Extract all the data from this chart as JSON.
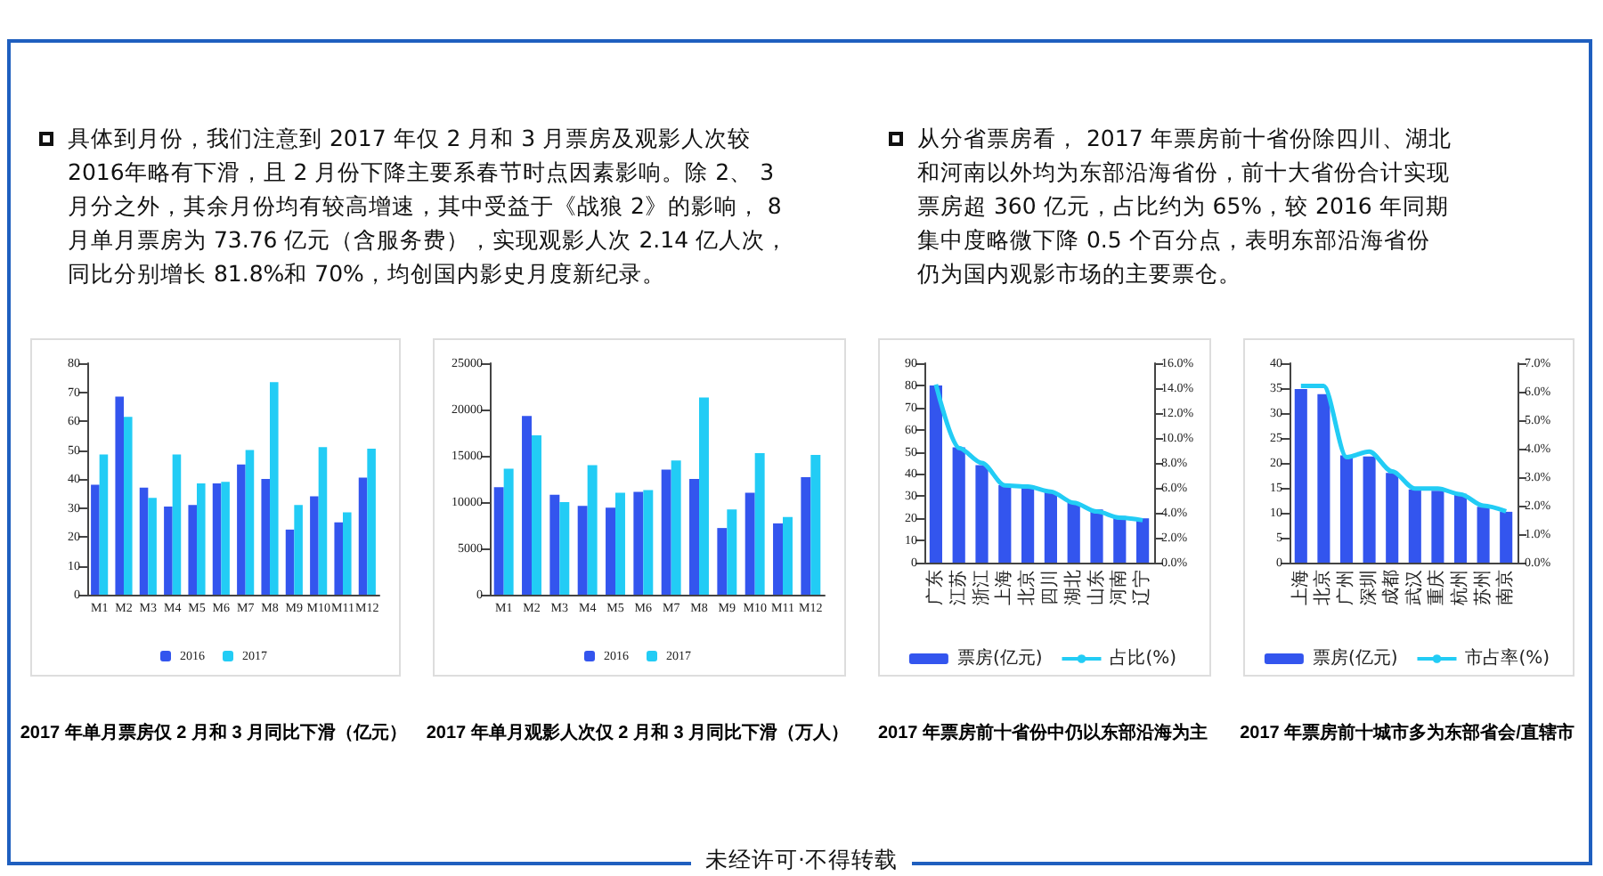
{
  "chart_data": [
    {
      "type": "other",
      "annotations": [
        "具体到月份，我们注意到 2017 年仅 2 月和 3 月票房及观影人次较 2016年略有下滑，且 2 月份下降主要系春节时点因素影响。除 2、 3 月分之外，其余月份均有较高增速，其中受益于《战狼 2》的影响， 8 月单月票房为 73.76 亿元（含服务费），实现观影人次 2.14 亿人次，同比分别增长 81.8%和 70%，均创国内影史月度新纪录。",
        "从分省票房看， 2017 年票房前十省份除四川、湖北和河南以外均为东部沿海省份，前十大省份合计实现票房超 360 亿元，占比约为 65%，较 2016 年同期集中度略微下降 0.5 个百分点，表明东部沿海省份仍为国内观影市场的主要票仓。",
        "未经许可·不得转载"
      ]
    },
    {
      "type": "bar",
      "title": "2017 年单月票房仅 2 月和 3 月同比下滑（亿元）",
      "categories": [
        "M1",
        "M2",
        "M3",
        "M4",
        "M5",
        "M6",
        "M7",
        "M8",
        "M9",
        "M10",
        "M11",
        "M12"
      ],
      "ylim": [
        0,
        80
      ],
      "yticks": [
        0,
        10,
        20,
        30,
        40,
        50,
        60,
        70,
        80
      ],
      "legend": "bottom",
      "series": [
        {
          "name": "2016",
          "color": "#3355ee",
          "values": [
            38,
            68.5,
            37,
            30.5,
            31,
            38.5,
            45,
            40,
            22.5,
            34,
            25,
            40.5
          ]
        },
        {
          "name": "2017",
          "color": "#22ccf5",
          "values": [
            48.5,
            61.5,
            33.5,
            48.5,
            38.5,
            39,
            50,
            73.5,
            31,
            51,
            28.5,
            50.5
          ]
        }
      ]
    },
    {
      "type": "bar",
      "title": "2017 年单月观影人次仅 2 月和 3 月同比下滑（万人）",
      "categories": [
        "M1",
        "M2",
        "M3",
        "M4",
        "M5",
        "M6",
        "M7",
        "M8",
        "M9",
        "M10",
        "M11",
        "M12"
      ],
      "ylim": [
        0,
        25000
      ],
      "yticks": [
        0,
        5000,
        10000,
        15000,
        20000,
        25000
      ],
      "legend": "bottom",
      "series": [
        {
          "name": "2016",
          "color": "#3355ee",
          "values": [
            11600,
            19300,
            10800,
            9600,
            9400,
            11100,
            13500,
            12500,
            7200,
            11000,
            7700,
            12700
          ]
        },
        {
          "name": "2017",
          "color": "#22ccf5",
          "values": [
            13600,
            17200,
            10000,
            14000,
            11000,
            11300,
            14500,
            21300,
            9200,
            15300,
            8400,
            15100
          ]
        }
      ]
    },
    {
      "type": "bar",
      "title": "2017 年票房前十省份中仍以东部沿海为主",
      "categories": [
        "广东",
        "江苏",
        "浙江",
        "上海",
        "北京",
        "四川",
        "湖北",
        "山东",
        "河南",
        "辽宁"
      ],
      "ylim": [
        0,
        90
      ],
      "yticks": [
        0,
        10,
        20,
        30,
        40,
        50,
        60,
        70,
        80,
        90
      ],
      "y2lim": [
        0,
        16
      ],
      "y2ticks": [
        {
          "value": 0,
          "label": "0.0%"
        },
        {
          "value": 2,
          "label": "2.0%"
        },
        {
          "value": 4,
          "label": "4.0%"
        },
        {
          "value": 6,
          "label": "6.0%"
        },
        {
          "value": 8,
          "label": "8.0%"
        },
        {
          "value": 10,
          "label": "10.0%"
        },
        {
          "value": 12,
          "label": "12.0%"
        },
        {
          "value": 14,
          "label": "14.0%"
        },
        {
          "value": 16,
          "label": "16.0%"
        }
      ],
      "legend": "bottom",
      "marker": "none",
      "series": [
        {
          "name": "票房(亿元)",
          "color": "#3355ee",
          "values": [
            80,
            52,
            44,
            35,
            35,
            32,
            27,
            24,
            21,
            20
          ]
        },
        {
          "name": "占比(%)",
          "type": "line",
          "axis": "y2",
          "color": "#22ccf5",
          "values": [
            14.3,
            9.2,
            8,
            6.2,
            6.1,
            5.7,
            4.8,
            4.1,
            3.6,
            3.4
          ]
        }
      ]
    },
    {
      "type": "bar",
      "title": "2017 年票房前十城市多为东部省会/直辖市",
      "categories": [
        "上海",
        "北京",
        "广州",
        "深圳",
        "成都",
        "武汉",
        "重庆",
        "杭州",
        "苏州",
        "南京"
      ],
      "ylim": [
        0,
        40
      ],
      "yticks": [
        0,
        5,
        10,
        15,
        20,
        25,
        30,
        35,
        40
      ],
      "y2lim": [
        0,
        7
      ],
      "y2ticks": [
        {
          "value": 0,
          "label": "0.0%"
        },
        {
          "value": 1,
          "label": "1.0%"
        },
        {
          "value": 2,
          "label": "2.0%"
        },
        {
          "value": 3,
          "label": "3.0%"
        },
        {
          "value": 4,
          "label": "4.0%"
        },
        {
          "value": 5,
          "label": "5.0%"
        },
        {
          "value": 6,
          "label": "6.0%"
        },
        {
          "value": 7,
          "label": "7.0%"
        }
      ],
      "legend": "bottom",
      "marker": "none",
      "series": [
        {
          "name": "票房(亿元)",
          "color": "#3355ee",
          "values": [
            34.8,
            33.8,
            21.5,
            21.3,
            18,
            14.7,
            14.4,
            13.8,
            11.2,
            10.2
          ]
        },
        {
          "name": "市占率(%)",
          "type": "line",
          "axis": "y2",
          "color": "#22ccf5",
          "values": [
            6.2,
            6.2,
            3.7,
            3.9,
            3.2,
            2.6,
            2.6,
            2.4,
            2,
            1.8
          ]
        }
      ]
    }
  ]
}
